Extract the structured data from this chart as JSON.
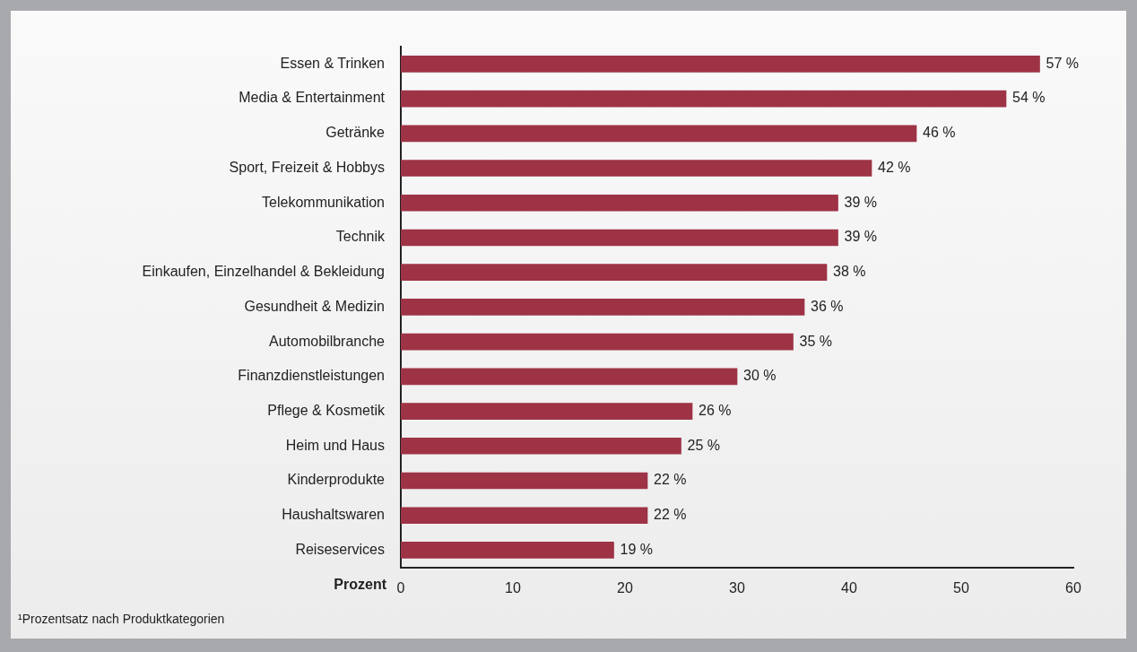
{
  "chart_data": {
    "type": "bar",
    "orientation": "horizontal",
    "xlabel": "Prozent",
    "categories": [
      "Essen & Trinken",
      "Media & Entertainment",
      "Getränke",
      "Sport, Freizeit & Hobbys",
      "Telekommunikation",
      "Technik",
      "Einkaufen, Einzelhandel & Bekleidung",
      "Gesundheit & Medizin",
      "Automobilbranche",
      "Finanzdienstleistungen",
      "Pflege & Kosmetik",
      "Heim und Haus",
      "Kinderprodukte",
      "Haushaltswaren",
      "Reiseservices"
    ],
    "values": [
      57,
      54,
      46,
      42,
      39,
      39,
      38,
      36,
      35,
      30,
      26,
      25,
      22,
      22,
      19
    ],
    "value_labels": [
      "57 %",
      "54 %",
      "46 %",
      "42 %",
      "39 %",
      "39 %",
      "38 %",
      "36 %",
      "35 %",
      "30 %",
      "26 %",
      "25 %",
      "22 %",
      "22 %",
      "19 %"
    ],
    "color": "#9e3346",
    "xlim": [
      0,
      60
    ],
    "xticks": [
      0,
      10,
      20,
      30,
      40,
      50,
      60
    ],
    "grid": false,
    "legend": false,
    "annotations": [
      "¹Prozentsatz nach Produktkategorien"
    ]
  }
}
